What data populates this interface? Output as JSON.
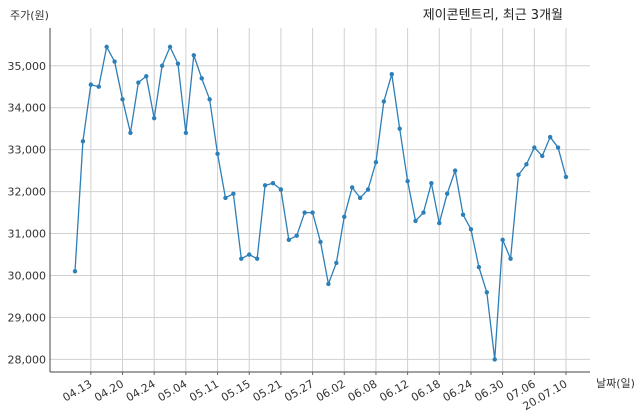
{
  "chart_data": {
    "type": "line",
    "title": "제이콘텐트리, 최근 3개월",
    "ylabel": "주가(원)",
    "xlabel": "날짜(일)",
    "ylim": [
      27700,
      35900
    ],
    "yticks": [
      28000,
      29000,
      30000,
      31000,
      32000,
      33000,
      34000,
      35000
    ],
    "ytick_labels": [
      "28,000",
      "29,000",
      "30,000",
      "31,000",
      "32,000",
      "33,000",
      "34,000",
      "35,000"
    ],
    "grid": true,
    "line_color": "#2c7fb8",
    "xtick_labels": [
      "04.13",
      "04.20",
      "04.24",
      "05.04",
      "05.11",
      "05.15",
      "05.21",
      "05.27",
      "06.02",
      "06.08",
      "06.12",
      "06.18",
      "06.24",
      "06.30",
      "07.06",
      "20.07.10"
    ],
    "xtick_indices": [
      2,
      6,
      10,
      14,
      18,
      22,
      26,
      30,
      34,
      38,
      42,
      46,
      50,
      54,
      58,
      62
    ],
    "values": [
      30100,
      33200,
      34550,
      34500,
      35450,
      35100,
      34200,
      33400,
      34600,
      34750,
      33750,
      35000,
      35450,
      35050,
      33400,
      35250,
      34700,
      34200,
      32900,
      31850,
      31950,
      30400,
      30500,
      30400,
      32150,
      32200,
      32050,
      30850,
      30950,
      31500,
      31500,
      30800,
      29800,
      30300,
      31400,
      32100,
      31850,
      32050,
      32700,
      34150,
      34800,
      33500,
      32250,
      31300,
      31500,
      32200,
      31250,
      31950,
      32500,
      31450,
      31100,
      30200,
      29600,
      28000,
      30850,
      30400,
      32400,
      32650,
      33050,
      32850,
      33300,
      33050,
      32350
    ]
  }
}
